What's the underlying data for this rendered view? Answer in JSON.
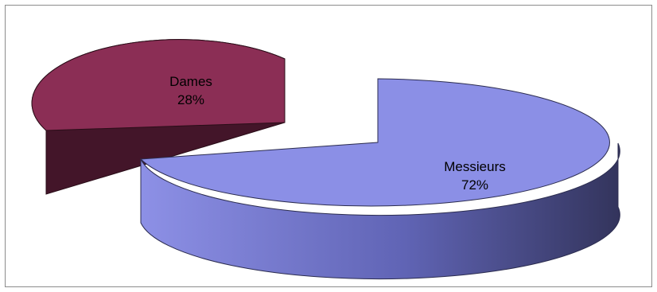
{
  "chart_data": {
    "type": "pie",
    "style": "3d-exploded",
    "title": "",
    "legend": "none",
    "slices": [
      {
        "label": "Dames",
        "value": 28,
        "value_label": "28%",
        "color": "#8b2e55",
        "side_color": "#431529"
      },
      {
        "label": "Messieurs",
        "value": 72,
        "value_label": "72%",
        "color": "#8b8fe6",
        "side_color": "#3b3c6a"
      }
    ]
  }
}
